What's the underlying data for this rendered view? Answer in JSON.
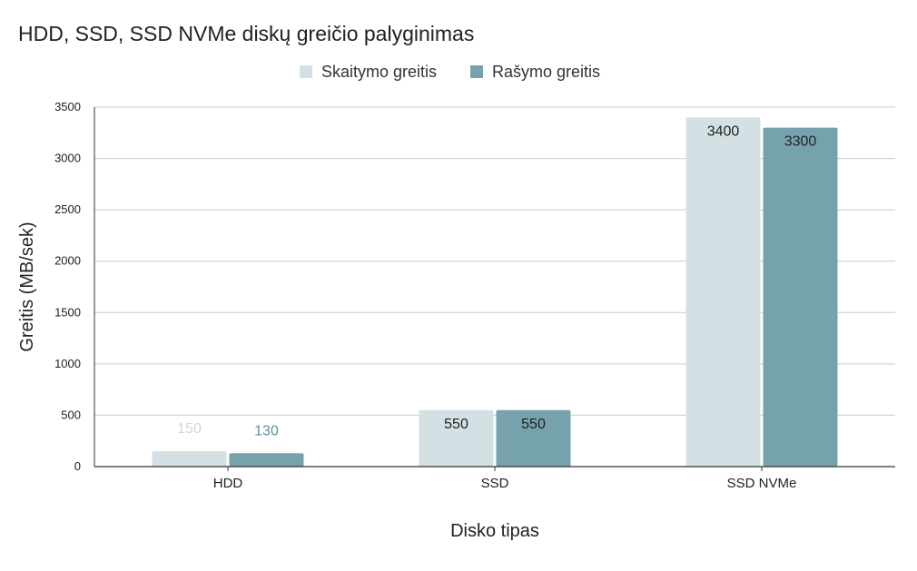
{
  "chart_data": {
    "type": "bar",
    "title": "HDD, SSD, SSD NVMe diskų greičio palyginimas",
    "xlabel": "Disko tipas",
    "ylabel": "Greitis (MB/sek)",
    "categories": [
      "HDD",
      "SSD",
      "SSD NVMe"
    ],
    "series": [
      {
        "name": "Skaitymo greitis",
        "values": [
          150,
          550,
          3400
        ],
        "color": "#d3e0e4",
        "label_colors": [
          "#c9dadf",
          "#222222",
          "#222222"
        ]
      },
      {
        "name": "Rašymo greitis",
        "values": [
          130,
          550,
          3300
        ],
        "color": "#76a2ad",
        "label_colors": [
          "#5f8e99",
          "#222222",
          "#222222"
        ]
      }
    ],
    "ylim": [
      0,
      3500
    ],
    "yticks": [
      "0",
      "500",
      "1000",
      "1500",
      "2000",
      "2500",
      "3000",
      "3500"
    ],
    "grid": true,
    "legend": "top",
    "gridline_color": "#cccccc",
    "axis_color": "#333333"
  }
}
